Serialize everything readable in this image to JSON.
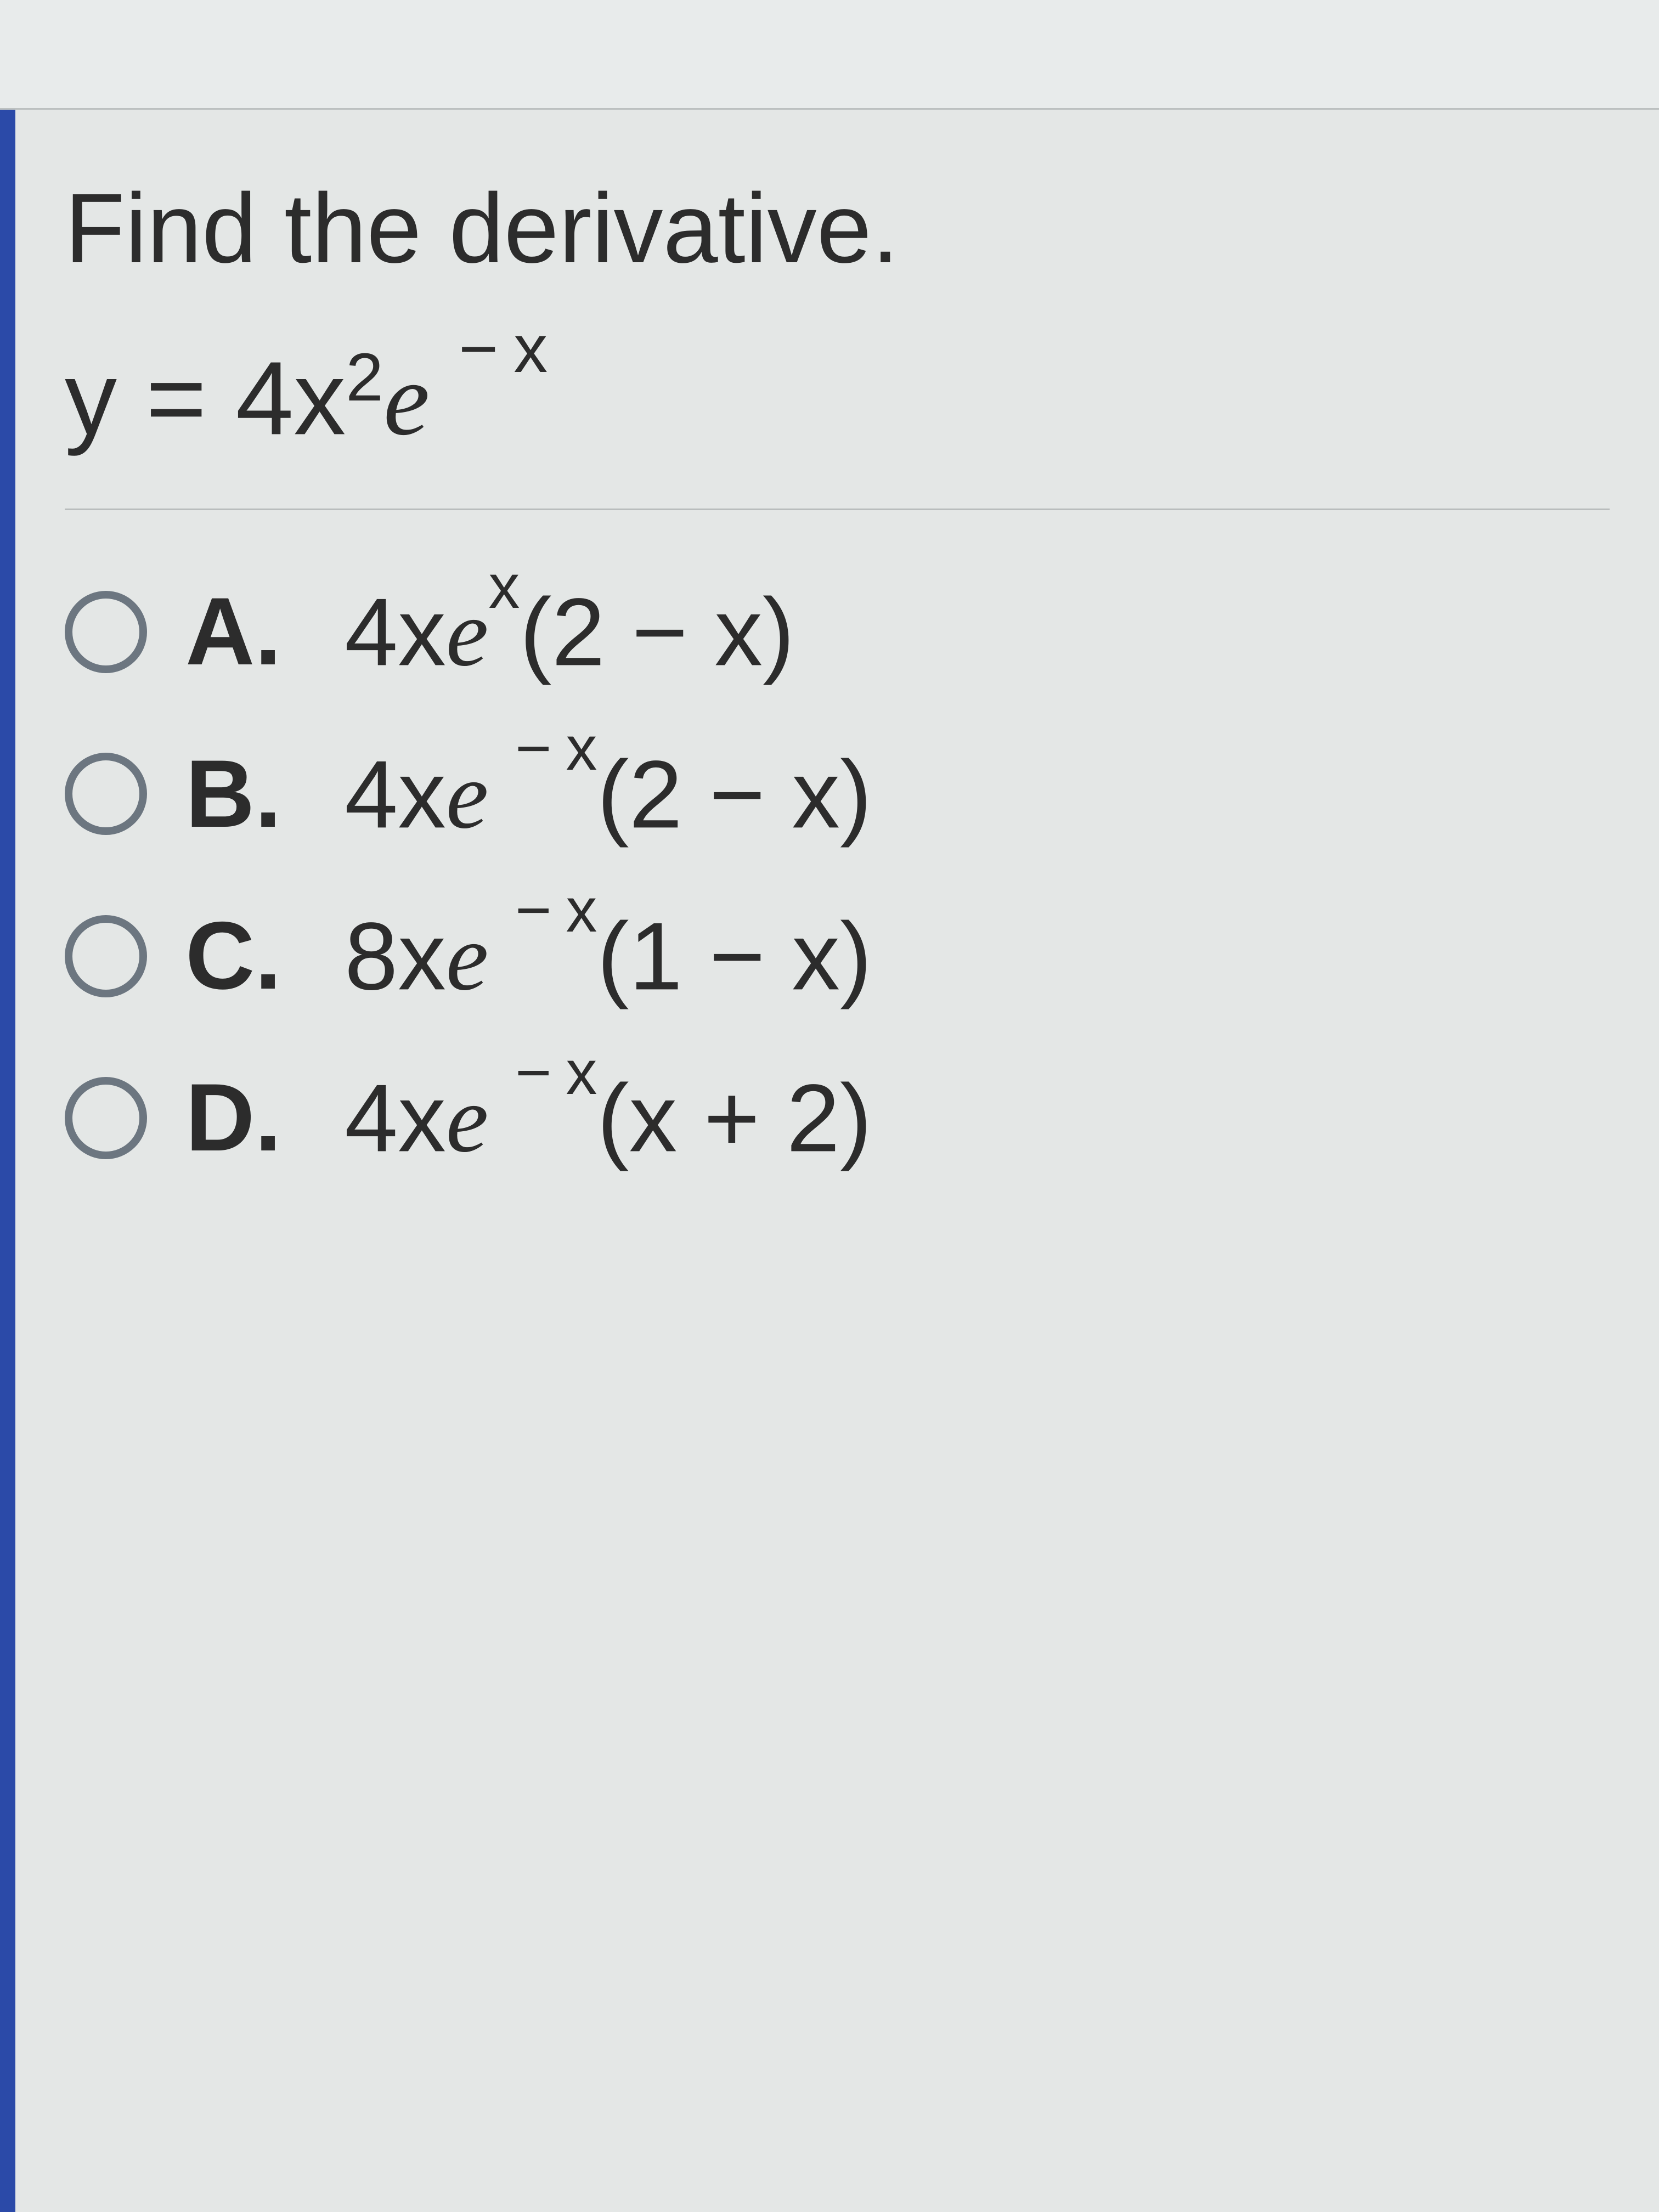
{
  "question": {
    "prompt": "Find the derivative.",
    "equation_y": "y",
    "equation_eq": "=",
    "equation_coef": "4",
    "equation_var": "x",
    "equation_exp1": "2",
    "equation_e": "e",
    "equation_exp2_neg": "−",
    "equation_exp2_var": "x"
  },
  "options": [
    {
      "letter": "A.",
      "coef": "4x",
      "e": "e",
      "sup_neg": "",
      "sup_var": "x",
      "paren": "(2 − x)"
    },
    {
      "letter": "B.",
      "coef": "4x",
      "e": "e",
      "sup_neg": "−",
      "sup_var": "x",
      "paren": "(2 − x)"
    },
    {
      "letter": "C.",
      "coef": "8x",
      "e": "e",
      "sup_neg": "−",
      "sup_var": "x",
      "paren": "(1 − x)"
    },
    {
      "letter": "D.",
      "coef": "4x",
      "e": "e",
      "sup_neg": "−",
      "sup_var": "x",
      "paren": "(x + 2)"
    }
  ],
  "colors": {
    "background": "#dce0e0",
    "content_bg": "#e4e7e6",
    "accent_bar": "#2b4aa8",
    "text": "#2c2c2c",
    "radio_border": "#6c7680",
    "divider": "#aeb2b2"
  },
  "typography": {
    "question_fontsize": 180,
    "equation_fontsize": 190,
    "option_fontsize": 175,
    "font_family": "Arial"
  }
}
